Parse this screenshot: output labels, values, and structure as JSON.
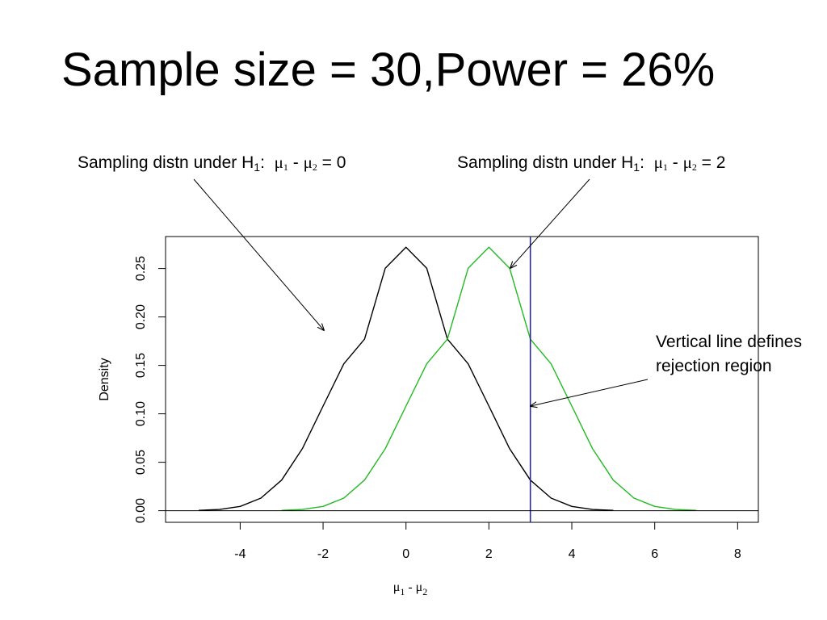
{
  "slide": {
    "title": "Sample size = 30,Power = 26%"
  },
  "annotations": {
    "left": {
      "prefix": "Sampling distn under H",
      "h_sub": "1",
      "colon": ":",
      "mu": "μ",
      "mu_sub1": "1",
      "minus": "-",
      "mu_sub2": "2",
      "eq": "= 0"
    },
    "right": {
      "prefix": "Sampling distn under H",
      "h_sub": "1",
      "colon": ":",
      "mu": "μ",
      "mu_sub1": "1",
      "minus": "-",
      "mu_sub2": "2",
      "eq": "= 2"
    },
    "vline_note": "Vertical line defines rejection region"
  },
  "chart_data": {
    "type": "line",
    "xlabel": {
      "mu": "μ",
      "sub1": "1",
      "minus": "-",
      "sub2": "2"
    },
    "ylabel": "Density",
    "xlim": [
      -5.8,
      8.5
    ],
    "ylim": [
      -0.012,
      0.283
    ],
    "x_ticks": [
      -4,
      -2,
      0,
      2,
      4,
      6,
      8
    ],
    "y_ticks": [
      0.0,
      0.05,
      0.1,
      0.15,
      0.2,
      0.25
    ],
    "x_tick_labels": [
      "-4",
      "-2",
      "0",
      "2",
      "4",
      "6",
      "8"
    ],
    "y_tick_labels": [
      "0.00",
      "0.05",
      "0.10",
      "0.15",
      "0.20",
      "0.25"
    ],
    "grid": false,
    "series": [
      {
        "color": "#000000",
        "x": [
          -5,
          -4.5,
          -4,
          -3.5,
          -3,
          -2.5,
          -2,
          -1.5,
          -1,
          -0.5,
          0,
          0.5,
          1,
          1.5,
          2,
          2.5,
          3,
          3.5,
          4,
          4.5,
          5
        ],
        "y": [
          0.0003,
          0.0013,
          0.0044,
          0.013,
          0.0316,
          0.064,
          0.108,
          0.1516,
          0.1771,
          0.2503,
          0.272,
          0.2503,
          0.1771,
          0.1516,
          0.108,
          0.064,
          0.0316,
          0.013,
          0.0044,
          0.0013,
          0.0003
        ]
      },
      {
        "color": "#22bb22",
        "x": [
          -3,
          -2.5,
          -2,
          -1.5,
          -1,
          -0.5,
          0,
          0.5,
          1,
          1.5,
          2,
          2.5,
          3,
          3.5,
          4,
          4.5,
          5,
          5.5,
          6,
          6.5,
          7
        ],
        "y": [
          0.0003,
          0.0013,
          0.0044,
          0.013,
          0.0316,
          0.064,
          0.108,
          0.1516,
          0.1771,
          0.2503,
          0.272,
          0.2503,
          0.1771,
          0.1516,
          0.108,
          0.064,
          0.0316,
          0.013,
          0.0044,
          0.0013,
          0.0003
        ]
      }
    ],
    "reference_lines": [
      {
        "orientation": "vertical",
        "x": 3,
        "color": "#2a2a8a"
      },
      {
        "orientation": "horizontal",
        "y": 0,
        "color": "#000000"
      }
    ]
  }
}
